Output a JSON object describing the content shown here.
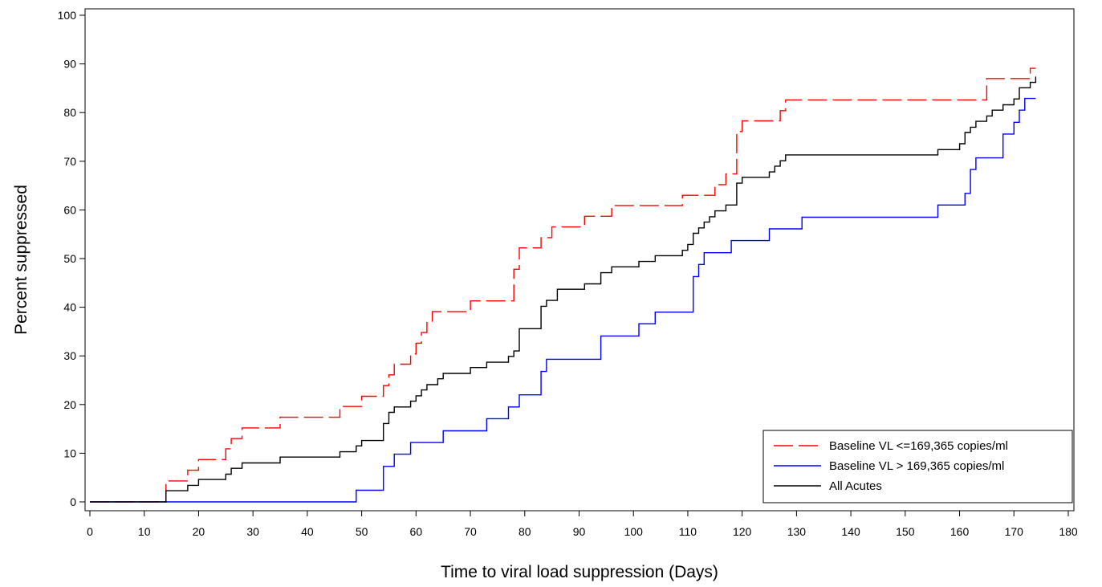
{
  "chart_data": {
    "type": "line",
    "title": "",
    "xlabel": "Time to viral load suppression (Days)",
    "ylabel": "Percent suppressed",
    "xlim": [
      0,
      180
    ],
    "ylim": [
      0,
      100
    ],
    "xticks": [
      0,
      10,
      20,
      30,
      40,
      50,
      60,
      70,
      80,
      90,
      100,
      110,
      120,
      130,
      140,
      150,
      160,
      170,
      180
    ],
    "yticks": [
      0,
      10,
      20,
      30,
      40,
      50,
      60,
      70,
      80,
      90,
      100
    ],
    "grid": false,
    "legend_position": "bottom-right",
    "step": true,
    "series": [
      {
        "name": "Baseline VL <=169,365 copies/ml",
        "color": "#ff0000",
        "dash": "dashed",
        "x": [
          0,
          14,
          18,
          20,
          25,
          26,
          28,
          35,
          46,
          50,
          54,
          55,
          56,
          59,
          60,
          61,
          62,
          63,
          70,
          78,
          79,
          83,
          85,
          86,
          91,
          96,
          109,
          115,
          117,
          119,
          120,
          127,
          128,
          165,
          173,
          174
        ],
        "y": [
          0,
          4.3,
          6.5,
          8.7,
          10.9,
          13,
          15.2,
          17.4,
          19.6,
          21.7,
          23.9,
          26.1,
          28.3,
          30.4,
          32.6,
          34.8,
          37,
          39.1,
          41.3,
          47.8,
          52.2,
          54.3,
          56.5,
          56.5,
          58.7,
          60.9,
          63,
          65.2,
          67.4,
          76.1,
          78.3,
          80.4,
          82.6,
          87,
          89.1,
          89.1
        ]
      },
      {
        "name": "Baseline VL > 169,365 copies/ml",
        "color": "#0000ff",
        "dash": "solid",
        "x": [
          0,
          14,
          33,
          35,
          49,
          54,
          56,
          57,
          59,
          60,
          65,
          73,
          77,
          79,
          83,
          84,
          85,
          94,
          101,
          104,
          111,
          112,
          113,
          115,
          118,
          125,
          131,
          136,
          156,
          161,
          162,
          163,
          168,
          170,
          171,
          172,
          174
        ],
        "y": [
          0,
          0,
          0,
          0,
          2.4,
          7.3,
          9.8,
          9.8,
          12.2,
          12.2,
          14.6,
          17.1,
          19.5,
          22,
          26.8,
          29.3,
          29.3,
          34.1,
          36.6,
          39,
          46.3,
          48.8,
          51.2,
          51.2,
          53.7,
          56.1,
          58.5,
          58.5,
          61,
          63.4,
          68.3,
          70.7,
          75.6,
          78,
          80.5,
          82.9,
          82.9
        ]
      },
      {
        "name": "All Acutes",
        "color": "#000000",
        "dash": "solid",
        "x": [
          0,
          14,
          18,
          20,
          25,
          26,
          28,
          35,
          46,
          49,
          50,
          54,
          55,
          56,
          59,
          60,
          61,
          62,
          64,
          65,
          70,
          73,
          77,
          78,
          79,
          83,
          84,
          86,
          91,
          94,
          96,
          101,
          104,
          109,
          110,
          111,
          112,
          113,
          114,
          115,
          117,
          119,
          120,
          125,
          126,
          127,
          128,
          131,
          156,
          160,
          161,
          162,
          163,
          165,
          166,
          168,
          170,
          171,
          173,
          174
        ],
        "y": [
          0,
          2.3,
          3.4,
          4.6,
          5.7,
          6.9,
          8,
          9.2,
          10.3,
          11.5,
          12.6,
          16.1,
          18.4,
          19.5,
          20.7,
          21.8,
          23,
          24.1,
          25.3,
          26.4,
          27.6,
          28.7,
          29.9,
          31,
          35.6,
          40.2,
          41.4,
          43.7,
          44.8,
          47.1,
          48.3,
          49.4,
          50.6,
          51.7,
          52.9,
          55.2,
          56.3,
          57.5,
          58.6,
          59.8,
          61,
          65.5,
          66.7,
          67.8,
          69,
          70.1,
          71.3,
          71.3,
          72.4,
          73.6,
          75.9,
          77,
          78.2,
          79.3,
          80.5,
          81.6,
          82.8,
          85.1,
          86.2,
          87.4
        ]
      }
    ]
  }
}
